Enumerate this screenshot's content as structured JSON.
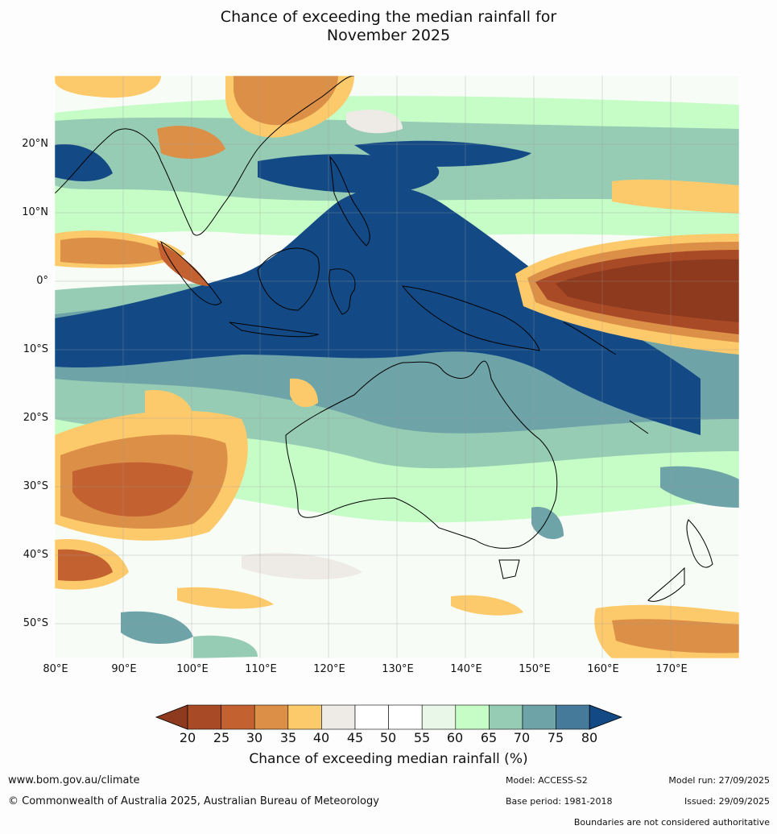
{
  "title": {
    "line1": "Chance of exceeding the median rainfall for",
    "line2": "November 2025"
  },
  "map": {
    "lat_ticks": [
      "20°N",
      "10°N",
      "0°",
      "10°S",
      "20°S",
      "30°S",
      "40°S",
      "50°S"
    ],
    "lon_ticks": [
      "80°E",
      "90°E",
      "100°E",
      "110°E",
      "120°E",
      "130°E",
      "140°E",
      "150°E",
      "160°E",
      "170°E"
    ],
    "extent": {
      "lon_min": 80,
      "lon_max": 180,
      "lat_min": -55,
      "lat_max": 30
    }
  },
  "colorbar": {
    "label": "Chance of exceeding median rainfall (%)",
    "ticks": [
      "20",
      "25",
      "30",
      "35",
      "40",
      "45",
      "50",
      "55",
      "60",
      "65",
      "70",
      "75",
      "80"
    ],
    "colors": [
      "#8e3a1f",
      "#a94a26",
      "#c46130",
      "#dc8f47",
      "#fdca6b",
      "#eeebe6",
      "#ffffff",
      "#ffffff",
      "#e8f7e8",
      "#c6fcc6",
      "#97ccb4",
      "#6ea3a8",
      "#457a9b",
      "#134a86"
    ]
  },
  "footer": {
    "url": "www.bom.gov.au/climate",
    "copyright": "© Commonwealth of Australia 2025, Australian Bureau of Meteorology",
    "model": "Model: ACCESS-S2",
    "base_period": "Base period: 1981-2018",
    "model_run": "Model run: 27/09/2025",
    "issued": "Issued: 29/09/2025",
    "disclaimer": "Boundaries are not considered authoritative"
  }
}
